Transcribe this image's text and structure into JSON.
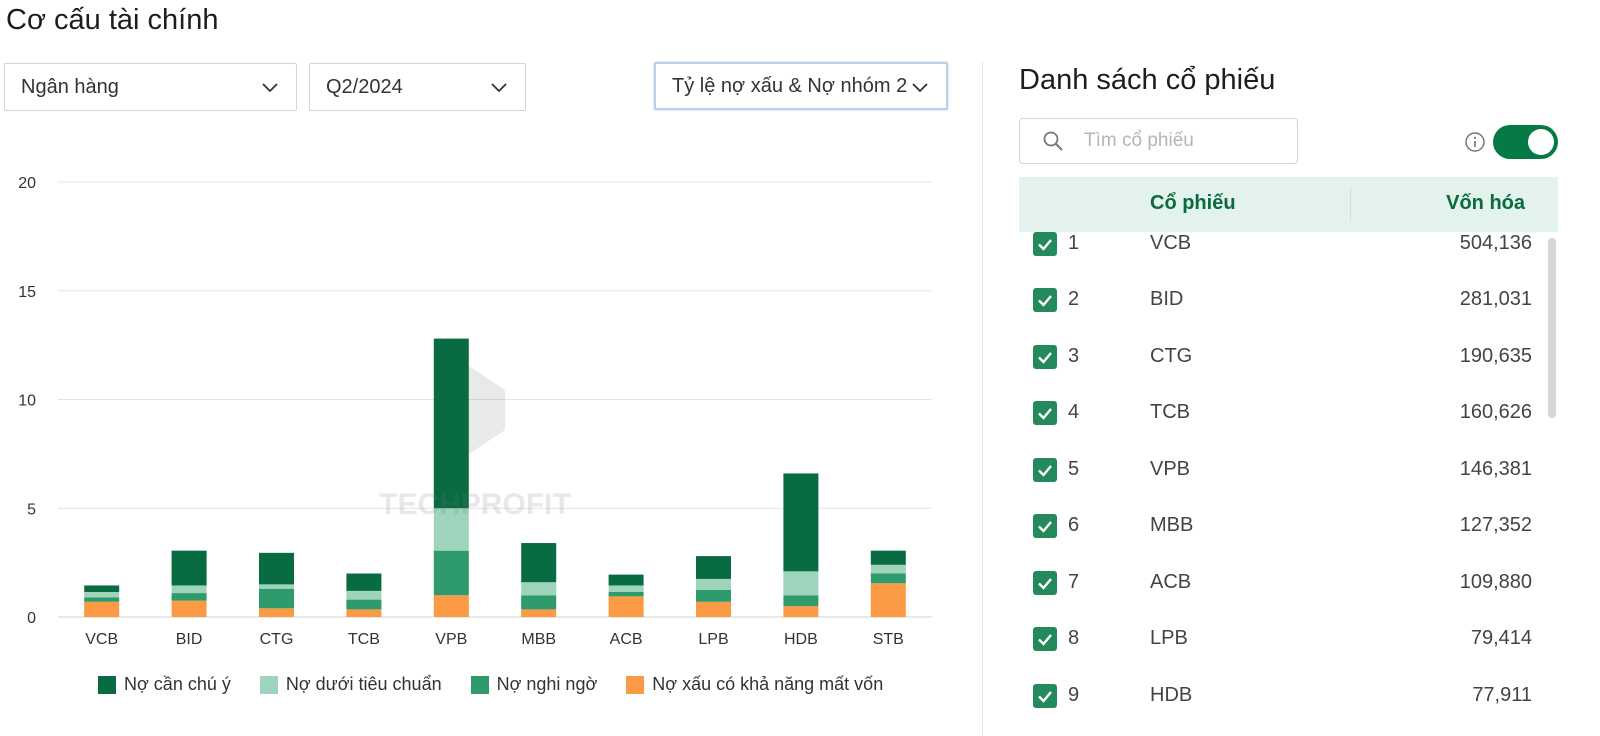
{
  "page_title": "Cơ cấu tài chính",
  "filters": {
    "industry": "Ngân hàng",
    "quarter": "Q2/2024",
    "metric": "Tỷ lệ nợ xấu & Nợ nhóm 2"
  },
  "watermark": "TECHPROFIT",
  "chart_data": {
    "type": "bar",
    "stacked": true,
    "categories": [
      "VCB",
      "BID",
      "CTG",
      "TCB",
      "VPB",
      "MBB",
      "ACB",
      "LPB",
      "HDB",
      "STB"
    ],
    "ylim": [
      0,
      20
    ],
    "yticks": [
      "0",
      "5",
      "10",
      "15",
      "20"
    ],
    "grid": true,
    "legend_position": "bottom",
    "series": [
      {
        "name": "Nợ xấu có khả năng mất vốn",
        "color": "#fa9a45",
        "values": [
          0.7,
          0.75,
          0.4,
          0.35,
          1.0,
          0.35,
          0.95,
          0.7,
          0.5,
          1.55
        ]
      },
      {
        "name": "Nợ nghi ngờ",
        "color": "#2f9b6c",
        "values": [
          0.2,
          0.35,
          0.9,
          0.45,
          2.05,
          0.65,
          0.2,
          0.55,
          0.5,
          0.45
        ]
      },
      {
        "name": "Nợ dưới tiêu chuẩn",
        "color": "#9dd4bb",
        "values": [
          0.25,
          0.35,
          0.2,
          0.4,
          1.95,
          0.6,
          0.3,
          0.5,
          1.1,
          0.4
        ]
      },
      {
        "name": "Nợ cần chú ý",
        "color": "#096b42",
        "values": [
          0.3,
          1.6,
          1.45,
          0.8,
          7.8,
          1.8,
          0.5,
          1.05,
          4.5,
          0.65
        ]
      }
    ]
  },
  "legend_order": [
    3,
    2,
    1,
    0
  ],
  "panel": {
    "title": "Danh sách cổ phiếu",
    "search_placeholder": "Tìm cổ phiếu",
    "toggle_on": true,
    "columns": {
      "stock": "Cổ phiếu",
      "market_cap": "Vốn hóa"
    },
    "rows": [
      {
        "rank": "1",
        "ticker": "VCB",
        "cap": "504,136",
        "checked": true
      },
      {
        "rank": "2",
        "ticker": "BID",
        "cap": "281,031",
        "checked": true
      },
      {
        "rank": "3",
        "ticker": "CTG",
        "cap": "190,635",
        "checked": true
      },
      {
        "rank": "4",
        "ticker": "TCB",
        "cap": "160,626",
        "checked": true
      },
      {
        "rank": "5",
        "ticker": "VPB",
        "cap": "146,381",
        "checked": true
      },
      {
        "rank": "6",
        "ticker": "MBB",
        "cap": "127,352",
        "checked": true
      },
      {
        "rank": "7",
        "ticker": "ACB",
        "cap": "109,880",
        "checked": true
      },
      {
        "rank": "8",
        "ticker": "LPB",
        "cap": "79,414",
        "checked": true
      },
      {
        "rank": "9",
        "ticker": "HDB",
        "cap": "77,911",
        "checked": true
      }
    ]
  },
  "colors": {
    "accent": "#067a44",
    "header_bg": "#e3f2ec"
  }
}
